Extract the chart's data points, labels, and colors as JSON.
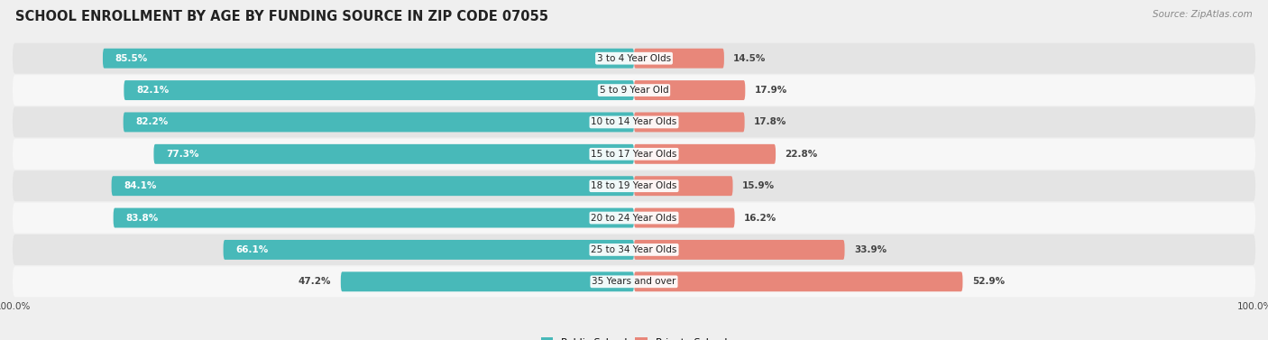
{
  "title": "SCHOOL ENROLLMENT BY AGE BY FUNDING SOURCE IN ZIP CODE 07055",
  "source": "Source: ZipAtlas.com",
  "categories": [
    "3 to 4 Year Olds",
    "5 to 9 Year Old",
    "10 to 14 Year Olds",
    "15 to 17 Year Olds",
    "18 to 19 Year Olds",
    "20 to 24 Year Olds",
    "25 to 34 Year Olds",
    "35 Years and over"
  ],
  "public_values": [
    85.5,
    82.1,
    82.2,
    77.3,
    84.1,
    83.8,
    66.1,
    47.2
  ],
  "private_values": [
    14.5,
    17.9,
    17.8,
    22.8,
    15.9,
    16.2,
    33.9,
    52.9
  ],
  "public_color": "#48b9b9",
  "private_color": "#e8877a",
  "bg_color": "#efefef",
  "row_bg_light": "#f7f7f7",
  "row_bg_dark": "#e4e4e4",
  "title_fontsize": 10.5,
  "label_fontsize": 7.5,
  "bar_label_fontsize": 7.5,
  "legend_fontsize": 8,
  "axis_label_fontsize": 7.5
}
